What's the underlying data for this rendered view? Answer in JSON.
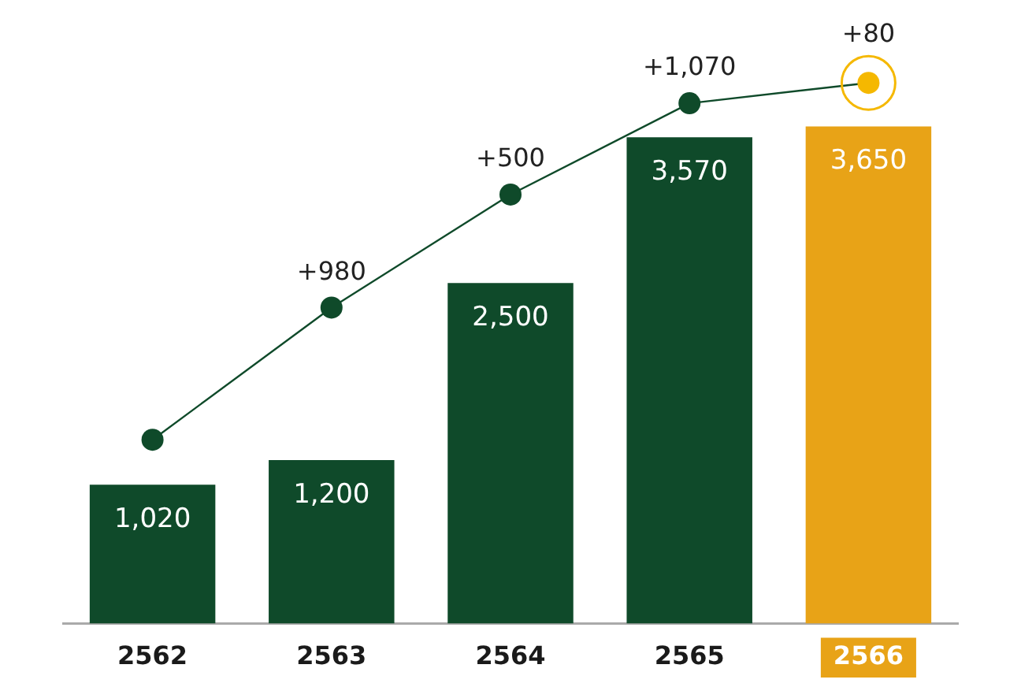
{
  "chart_data": {
    "type": "bar",
    "categories": [
      "2562",
      "2563",
      "2564",
      "2565",
      "2566"
    ],
    "series": [
      {
        "color": "#0f4a2a",
        "colors": [
          "#0f4a2a",
          "#0f4a2a",
          "#0f4a2a",
          "#0f4a2a",
          "#e8a317"
        ],
        "values": [
          1020,
          1200,
          2500,
          3570,
          3650
        ],
        "value_labels": [
          "1,020",
          "1,200",
          "2,500",
          "3,570",
          "3,650"
        ]
      },
      {
        "type": "line",
        "color": "#0f4a2a",
        "colors": [
          "#0f4a2a",
          "#0f4a2a",
          "#0f4a2a",
          "#0f4a2a",
          "#f5b800"
        ],
        "values": [
          1350,
          2320,
          3150,
          3820,
          3970
        ]
      }
    ],
    "annotations": [
      {
        "text": "+980",
        "x": "2563",
        "y": 2320
      },
      {
        "text": "+500",
        "x": "2564",
        "y": 3150
      },
      {
        "text": "+1,070",
        "x": "2565",
        "y": 3820
      },
      {
        "text": "+80",
        "x": "2566",
        "y": 3970
      }
    ],
    "tick_labels": "x",
    "grid": false,
    "legend": false,
    "marker": "circle"
  }
}
